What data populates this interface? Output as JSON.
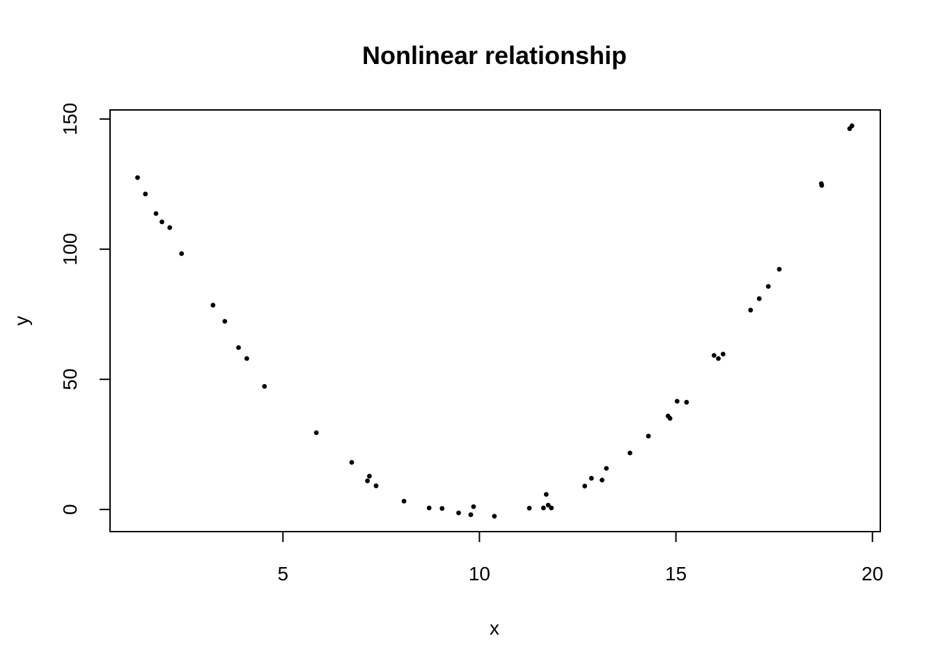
{
  "chart_data": {
    "type": "scatter",
    "title": "Nonlinear relationship",
    "xlabel": "x",
    "ylabel": "y",
    "xlim": [
      0.6,
      20.2
    ],
    "ylim": [
      -8.5,
      153.5
    ],
    "xticks": [
      5,
      10,
      15,
      20
    ],
    "yticks": [
      0,
      50,
      100,
      150
    ],
    "grid": false,
    "legend": "none",
    "point_color": "#000000",
    "points": [
      {
        "x": 1.3,
        "y": 127.5
      },
      {
        "x": 1.5,
        "y": 121.2
      },
      {
        "x": 1.77,
        "y": 113.7
      },
      {
        "x": 1.92,
        "y": 110.5
      },
      {
        "x": 2.12,
        "y": 108.3
      },
      {
        "x": 2.42,
        "y": 98.3
      },
      {
        "x": 3.22,
        "y": 78.5
      },
      {
        "x": 3.52,
        "y": 72.3
      },
      {
        "x": 3.87,
        "y": 62.2
      },
      {
        "x": 4.08,
        "y": 58.0
      },
      {
        "x": 4.53,
        "y": 47.3
      },
      {
        "x": 5.85,
        "y": 29.5
      },
      {
        "x": 6.75,
        "y": 18.1
      },
      {
        "x": 7.15,
        "y": 11.0
      },
      {
        "x": 7.2,
        "y": 12.8
      },
      {
        "x": 7.37,
        "y": 9.1
      },
      {
        "x": 8.08,
        "y": 3.2
      },
      {
        "x": 8.72,
        "y": 0.6
      },
      {
        "x": 9.05,
        "y": 0.4
      },
      {
        "x": 9.47,
        "y": -1.3
      },
      {
        "x": 9.78,
        "y": -2.0
      },
      {
        "x": 9.85,
        "y": 1.1
      },
      {
        "x": 10.38,
        "y": -2.6
      },
      {
        "x": 11.27,
        "y": 0.5
      },
      {
        "x": 11.63,
        "y": 0.6
      },
      {
        "x": 11.7,
        "y": 5.8
      },
      {
        "x": 11.75,
        "y": 1.7
      },
      {
        "x": 11.83,
        "y": 0.6
      },
      {
        "x": 12.68,
        "y": 9.0
      },
      {
        "x": 12.85,
        "y": 12.0
      },
      {
        "x": 13.12,
        "y": 11.3
      },
      {
        "x": 13.23,
        "y": 15.8
      },
      {
        "x": 13.83,
        "y": 21.7
      },
      {
        "x": 14.3,
        "y": 28.2
      },
      {
        "x": 14.8,
        "y": 35.9
      },
      {
        "x": 14.85,
        "y": 35.0
      },
      {
        "x": 15.03,
        "y": 41.6
      },
      {
        "x": 15.27,
        "y": 41.2
      },
      {
        "x": 15.97,
        "y": 59.2
      },
      {
        "x": 16.08,
        "y": 58.0
      },
      {
        "x": 16.2,
        "y": 59.7
      },
      {
        "x": 16.9,
        "y": 76.6
      },
      {
        "x": 17.12,
        "y": 81.0
      },
      {
        "x": 17.35,
        "y": 85.7
      },
      {
        "x": 17.63,
        "y": 92.3
      },
      {
        "x": 18.7,
        "y": 125.2
      },
      {
        "x": 18.71,
        "y": 124.5
      },
      {
        "x": 19.42,
        "y": 146.3
      },
      {
        "x": 19.48,
        "y": 147.4
      }
    ]
  }
}
